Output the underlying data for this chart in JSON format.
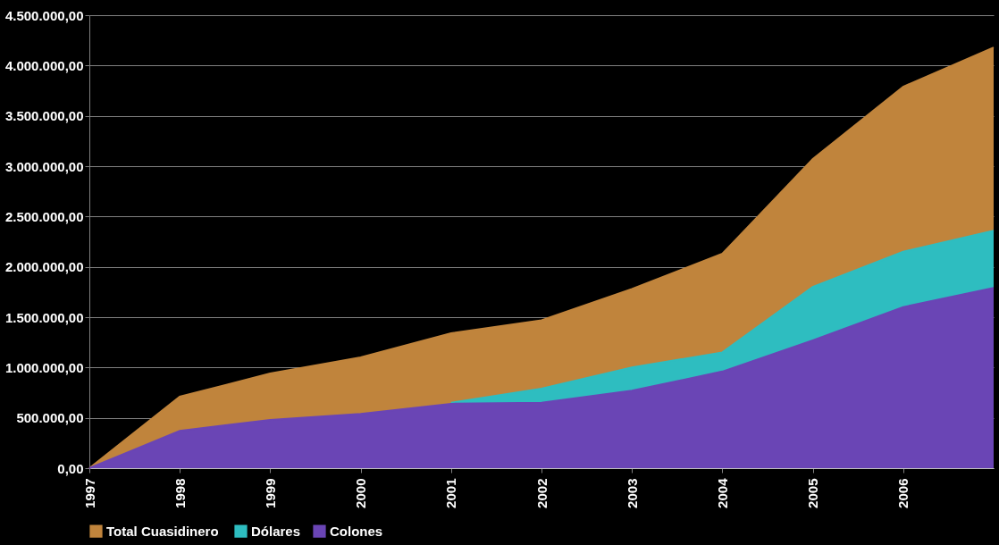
{
  "chart_data": {
    "type": "area",
    "x": [
      1997,
      1998,
      1999,
      2000,
      2001,
      2002,
      2003,
      2004,
      2005,
      2006,
      2007
    ],
    "series": [
      {
        "name": "Total  Cuasidinero",
        "color": "#c0843c",
        "values": [
          0,
          710000,
          940000,
          1100000,
          1340000,
          1470000,
          1780000,
          2130000,
          3070000,
          3790000,
          4180000
        ]
      },
      {
        "name": "Dólares",
        "color": "#2ebdc0",
        "values": [
          null,
          null,
          null,
          null,
          650000,
          790000,
          1000000,
          1150000,
          1800000,
          2150000,
          2360000
        ]
      },
      {
        "name": "Colones",
        "color": "#6a45b5",
        "values": [
          0,
          370000,
          480000,
          540000,
          640000,
          650000,
          770000,
          960000,
          1270000,
          1600000,
          1790000
        ]
      }
    ],
    "xlim": [
      1997,
      2007
    ],
    "xticks": [
      1997,
      1998,
      1999,
      2000,
      2001,
      2002,
      2003,
      2004,
      2005,
      2006
    ],
    "ylim": [
      0,
      4500000
    ],
    "yticks": [
      {
        "value": 0,
        "label": "0,00"
      },
      {
        "value": 500000,
        "label": "500.000,00"
      },
      {
        "value": 1000000,
        "label": "1.000.000,00"
      },
      {
        "value": 1500000,
        "label": "1.500.000,00"
      },
      {
        "value": 2000000,
        "label": "2.000.000,00"
      },
      {
        "value": 2500000,
        "label": "2.500.000,00"
      },
      {
        "value": 3000000,
        "label": "3.000.000,00"
      },
      {
        "value": 3500000,
        "label": "3.500.000,00"
      },
      {
        "value": 4000000,
        "label": "4.000.000,00"
      },
      {
        "value": 4500000,
        "label": "4.500.000,00"
      }
    ],
    "grid": "y",
    "legend": "bottom"
  }
}
